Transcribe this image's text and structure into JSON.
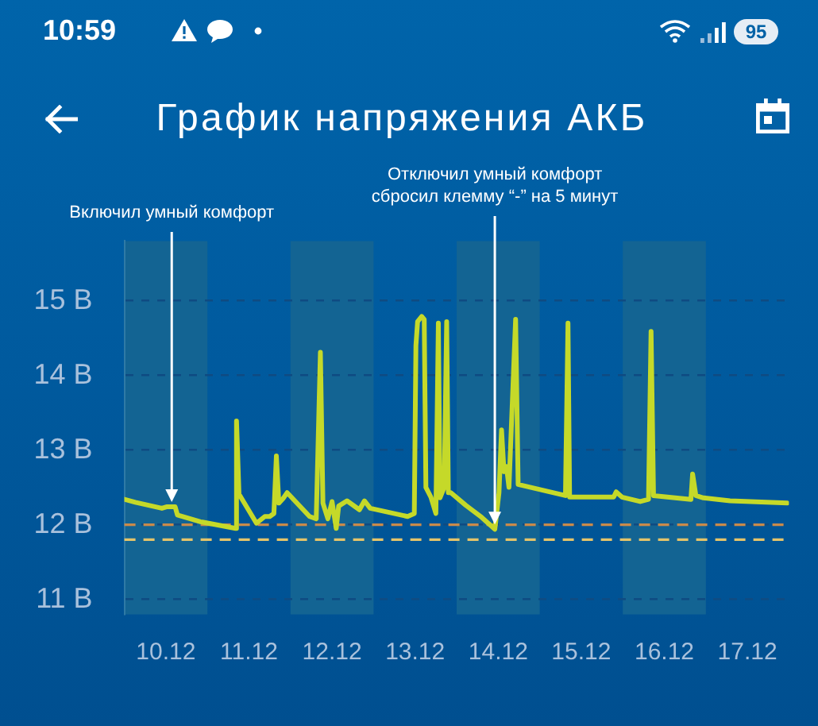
{
  "chart_data": {
    "type": "line",
    "title": "График напряжения АКБ",
    "x": [
      "--12-09T12:00",
      "--12-09T15:10",
      "--12-09T22:50",
      "--12-10T00:10",
      "--12-10T02:40",
      "--12-10T03:20",
      "--12-10T10:00",
      "--12-10T20:10",
      "--12-10T20:24",
      "--12-10T21:07",
      "--12-11T02:10",
      "--12-11T04:34",
      "--12-11T06:00",
      "--12-11T07:12",
      "--12-11T07:55",
      "--12-11T08:38",
      "--12-11T09:50",
      "--12-11T11:02",
      "--12-11T17:31",
      "--12-11T19:26",
      "--12-11T20:38",
      "--12-11T21:22",
      "--12-11T22:48",
      "--12-12T00:00",
      "--12-12T01:12",
      "--12-12T01:55",
      "--12-12T04:19",
      "--12-12T07:55",
      "--12-12T09:22",
      "--12-12T11:02",
      "--12-12T21:50",
      "--12-12T23:46",
      "--12-13T00:14",
      "--12-13T00:43",
      "--12-13T01:55",
      "--12-13T02:38",
      "--12-13T03:07",
      "--12-13T04:34",
      "--12-13T06:00",
      "--12-13T06:43",
      "--12-13T07:12",
      "--12-13T08:24",
      "--12-13T09:07",
      "--12-13T09:36",
      "--12-13T10:19",
      "--12-13T14:38",
      "--12-13T19:12",
      "--12-13T23:02",
      "--12-14T00:14",
      "--12-14T00:58",
      "--12-14T01:41",
      "--12-14T02:24",
      "--12-14T03:07",
      "--12-14T05:02",
      "--12-14T05:46",
      "--12-14T19:26",
      "--12-14T20:10",
      "--12-14T20:38",
      "--12-15T09:22",
      "--12-15T10:05",
      "--12-15T11:46",
      "--12-15T17:02",
      "--12-15T19:26",
      "--12-15T20:10",
      "--12-15T20:53",
      "--12-16T07:41",
      "--12-16T08:10",
      "--12-16T09:07",
      "--12-16T11:17",
      "--12-16T18:58",
      "--12-17T11:31"
    ],
    "values": [
      12.34,
      12.3,
      12.22,
      12.24,
      12.24,
      12.13,
      12.04,
      11.95,
      13.39,
      12.41,
      12.02,
      12.11,
      12.11,
      12.15,
      12.92,
      12.29,
      12.35,
      12.43,
      12.11,
      12.08,
      14.31,
      12.29,
      12.08,
      12.31,
      11.95,
      12.25,
      12.32,
      12.2,
      12.32,
      12.22,
      12.11,
      12.15,
      14.4,
      14.72,
      14.79,
      14.75,
      12.5,
      12.37,
      12.15,
      14.7,
      12.36,
      12.5,
      14.72,
      12.43,
      12.43,
      12.26,
      12.1,
      11.94,
      12.43,
      13.27,
      12.71,
      12.78,
      12.5,
      14.75,
      12.54,
      12.39,
      14.7,
      12.37,
      12.37,
      12.44,
      12.37,
      12.31,
      12.34,
      14.59,
      12.39,
      12.34,
      12.68,
      12.39,
      12.36,
      12.32,
      12.29
    ],
    "color": "#c5d929",
    "xlim": [
      "--12-09T12:00",
      "--12-17T12:00"
    ],
    "xticks": [
      {
        "value": "--12-10",
        "label": "10.12"
      },
      {
        "value": "--12-11",
        "label": "11.12"
      },
      {
        "value": "--12-12",
        "label": "12.12"
      },
      {
        "value": "--12-13",
        "label": "13.12"
      },
      {
        "value": "--12-14",
        "label": "14.12"
      },
      {
        "value": "--12-15",
        "label": "15.12"
      },
      {
        "value": "--12-16",
        "label": "16.12"
      },
      {
        "value": "--12-17",
        "label": "17.12"
      }
    ],
    "ylim": [
      10.8,
      15.8
    ],
    "yticks": [
      {
        "value": 11,
        "label": "11 В"
      },
      {
        "value": 12,
        "label": "12 В"
      },
      {
        "value": 13,
        "label": "13 В"
      },
      {
        "value": 14,
        "label": "14 В"
      },
      {
        "value": 15,
        "label": "15 В"
      }
    ],
    "grid": "y",
    "bands": [
      {
        "axis": "x",
        "from": "--12-09T12:00",
        "to": "--12-10T12:00",
        "color": "#136493"
      },
      {
        "axis": "x",
        "from": "--12-11T12:00",
        "to": "--12-12T12:00",
        "color": "#136493"
      },
      {
        "axis": "x",
        "from": "--12-13T12:00",
        "to": "--12-14T12:00",
        "color": "#136493"
      },
      {
        "axis": "x",
        "from": "--12-15T12:00",
        "to": "--12-16T12:00",
        "color": "#136493"
      }
    ],
    "ref_lines": [
      {
        "axis": "y",
        "value": 12,
        "color": "#c98a4b",
        "line_style": "dashed"
      },
      {
        "axis": "y",
        "value": 11.8,
        "color": "#e4c46a",
        "line_style": "dashed"
      }
    ],
    "annotations": [
      "10:59",
      "95",
      {
        "text": "Включил умный комфорт",
        "x": "--12-10T01:41",
        "y": 12.24
      },
      {
        "text": "Отключил умный комфорт\nсбросил клемму “-” на 5 минут",
        "x": "--12-13T23:02",
        "y": 11.94
      }
    ]
  }
}
